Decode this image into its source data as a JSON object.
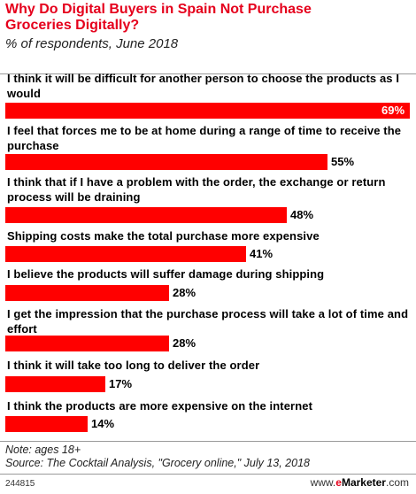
{
  "title": "Why Do Digital Buyers in Spain Not Purchase Groceries Digitally?",
  "subtitle": "% of respondents, June 2018",
  "chart_data": {
    "type": "bar",
    "orientation": "horizontal",
    "categories": [
      "I think it will be difficult for another person to choose the products as I would",
      "I feel that forces me to be at home during a range of time to receive the purchase",
      "I think that if I have a problem with the order, the exchange or return process will be draining",
      "Shipping costs make the total purchase more expensive",
      "I believe the products will suffer damage during shipping",
      "I get the impression that the purchase process will take a lot of time and effort",
      "I think it will take too long to deliver the order",
      "I think the products are more expensive on the internet"
    ],
    "values": [
      69,
      55,
      48,
      41,
      28,
      28,
      17,
      14
    ],
    "value_labels": [
      "69%",
      "55%",
      "48%",
      "41%",
      "28%",
      "28%",
      "17%",
      "14%"
    ],
    "color": "#ff0000",
    "xlim": [
      0,
      69
    ]
  },
  "note": "Note: ages 18+",
  "source": "Source: The Cocktail Analysis, \"Grocery online,\" July 13, 2018",
  "chart_id": "244815",
  "brand": {
    "prefix": "www.",
    "e": "e",
    "name": "Marketer",
    "suffix": ".com"
  }
}
